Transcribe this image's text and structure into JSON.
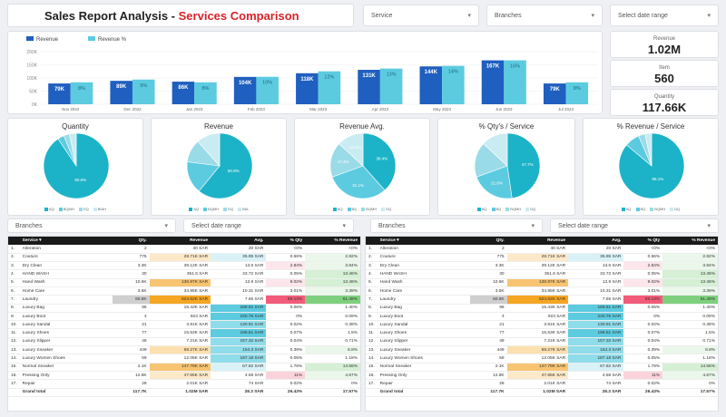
{
  "header": {
    "title_main": "Sales Report Analysis - ",
    "title_accent": "Services Comparison"
  },
  "filters_top": {
    "service": "Service",
    "branches": "Branches",
    "date": "Select date range"
  },
  "kpis": [
    {
      "label": "Revenue",
      "value": "1.02M"
    },
    {
      "label": "Item",
      "value": "560"
    },
    {
      "label": "Quantity",
      "value": "117.66K"
    }
  ],
  "bar_chart": {
    "legend": [
      "Revenue",
      "Revenue %"
    ],
    "colors": {
      "revenue": "#1f5fbf",
      "pct": "#5ccbe0"
    },
    "y_ticks": [
      "200K",
      "150K",
      "100K",
      "50K",
      "0K"
    ],
    "categories": [
      "Nov 2022",
      "Dec 2022",
      "Jan 2023",
      "Feb 2023",
      "Mar 2023",
      "Apr 2023",
      "May 2023",
      "Jun 2023",
      "Jul 2023"
    ],
    "revenue_labels": [
      "79K",
      "89K",
      "86K",
      "104K",
      "118K",
      "131K",
      "144K",
      "167K",
      "79K"
    ],
    "pct_labels": [
      "8%",
      "9%",
      "8%",
      "10%",
      "12%",
      "13%",
      "14%",
      "16%",
      "8%"
    ]
  },
  "chart_data": {
    "type": "bar",
    "categories": [
      "Nov 2022",
      "Dec 2022",
      "Jan 2023",
      "Feb 2023",
      "Mar 2023",
      "Apr 2023",
      "May 2023",
      "Jun 2023",
      "Jul 2023"
    ],
    "series": [
      {
        "name": "Revenue",
        "values": [
          79,
          89,
          86,
          104,
          118,
          131,
          144,
          167,
          79
        ]
      },
      {
        "name": "Revenue %",
        "values": [
          8,
          9,
          8,
          10,
          12,
          13,
          14,
          16,
          8
        ]
      }
    ],
    "ylim": [
      0,
      200
    ]
  },
  "pies": [
    {
      "title": "Quantity",
      "slices": [
        90.6,
        3.2,
        2.8,
        3.4
      ],
      "labels": [
        "90.6%",
        "",
        "",
        ""
      ],
      "legend": [
        "AQ",
        "BQMH",
        "DQ",
        "BIAH"
      ]
    },
    {
      "title": "Revenue",
      "slices": [
        60.9,
        16.1,
        11.4,
        11.6
      ],
      "labels": [
        "60.9%",
        "",
        "",
        ""
      ],
      "legend": [
        "AQ",
        "BQMH",
        "DQ",
        "BIA"
      ]
    },
    {
      "title": "Revenue Avg.",
      "slices": [
        38.4,
        31.1,
        17.4,
        13.1
      ],
      "labels": [
        "38.4%",
        "31.1%",
        "17.4%",
        "13.1%"
      ],
      "legend": [
        "AQ",
        "BQ",
        "BQMH",
        "DQ"
      ]
    },
    {
      "title": "% Qty's / Service",
      "slices": [
        47.7,
        21.8,
        17.4,
        13.1
      ],
      "labels": [
        "47.7%",
        "21.8%",
        "",
        ""
      ],
      "legend": [
        "AQ",
        "BQ",
        "BQMH",
        "DQ"
      ]
    },
    {
      "title": "% Revenue / Service",
      "slices": [
        86.1,
        7.4,
        3.3,
        3.2
      ],
      "labels": [
        "86.1%",
        "",
        "",
        ""
      ],
      "legend": [
        "AQ",
        "BQ",
        "BQMH",
        "DQ"
      ]
    }
  ],
  "pie_colors": [
    "#1cb3c8",
    "#5ccbe0",
    "#9adbe8",
    "#c9ecf2"
  ],
  "filters_bottom": {
    "branches": "Branches",
    "date": "Select date range"
  },
  "table": {
    "headers": [
      "Service",
      "Qty.",
      "Revenue",
      "Avg.",
      "% Qty",
      "% Revenue"
    ],
    "rows": [
      [
        "1.",
        "Alteration",
        "2",
        "40 SAR",
        "20 SAR",
        "<0%",
        "<0%"
      ],
      [
        "2.",
        "Couture",
        "775",
        "28.71K SAR",
        "35.95 SAR",
        "0.66%",
        "2.82%"
      ],
      [
        "3.",
        "Dry Clean",
        "3.3K",
        "39.12K SAR",
        "13.6 SAR",
        "2.84%",
        "3.84%"
      ],
      [
        "4.",
        "HAND WASH",
        "30",
        "351.6 SAR",
        "33.72 SAR",
        "0.05%",
        "13.46%"
      ],
      [
        "5.",
        "Hand Wash",
        "10.6K",
        "136.97K SAR",
        "13.9 SAR",
        "9.02%",
        "13.46%"
      ],
      [
        "6.",
        "Home Care",
        "3.5K",
        "34.95K SAR",
        "10.31 SAR",
        "3.01%",
        "3.39%"
      ],
      [
        "7.",
        "Laundry",
        "60.6K",
        "624.62K SAR",
        "7.65 SAR",
        "86.13%",
        "61.49%"
      ],
      [
        "8.",
        "Luxury Bag",
        "96",
        "15.43K SAR",
        "189.61 SAR",
        "0.06%",
        "1.40%"
      ],
      [
        "9.",
        "Luxury Boot",
        "4",
        "923 SAR",
        "230.75 SAR",
        "0%",
        "0.09%"
      ],
      [
        "10.",
        "Luxury Sandal",
        "21",
        "3.91K SAR",
        "130.91 SAR",
        "0.02%",
        "0.38%"
      ],
      [
        "11.",
        "Luxury Shoes",
        "77",
        "15.53K SAR",
        "198.51 SAR",
        "0.07%",
        "1.5%"
      ],
      [
        "12.",
        "Luxury Slipper",
        "49",
        "7.21K SAR",
        "157.32 SAR",
        "0.04%",
        "0.71%"
      ],
      [
        "13.",
        "Luxury Sneaker",
        "449",
        "69.27K SAR",
        "154.3 SAR",
        "0.39%",
        "6.8%"
      ],
      [
        "14.",
        "Luxury Women Shoes",
        "59",
        "12.05K SAR",
        "187.18 SAR",
        "0.05%",
        "1.18%"
      ],
      [
        "15.",
        "Normal Sneaker",
        "2.1K",
        "147.79K SAR",
        "67.82 SAR",
        "1.78%",
        "14.56%"
      ],
      [
        "16.",
        "Pressing Only",
        "12.8K",
        "47.65K SAR",
        "4.58 SAR",
        "11%",
        "4.67%"
      ],
      [
        "17.",
        "Repair",
        "28",
        "2.01K SAR",
        "74 SAR",
        "0.02%",
        "0%"
      ]
    ],
    "total": [
      "",
      "Grand total",
      "117.7K",
      "1.02M SAR",
      "28.3 SAR",
      "26.43%",
      "17.57%"
    ]
  }
}
